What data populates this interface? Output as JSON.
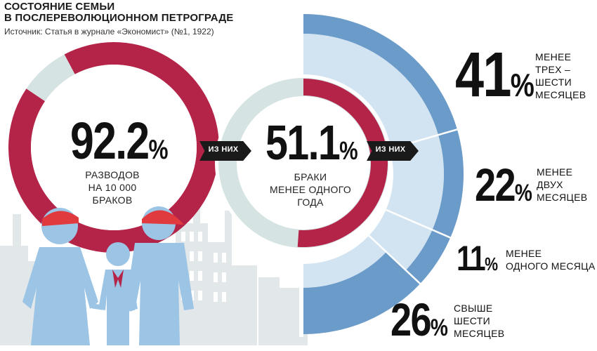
{
  "header": {
    "title_line1": "СОСТОЯНИЕ СЕМЬИ",
    "title_line2": "В ПОСЛЕРЕВОЛЮЦИОННОМ ПЕТРОГРАДЕ",
    "source": "Источник: Статья в журнале «Экономист» (№1, 1922)"
  },
  "colors": {
    "crimson": "#b42448",
    "ring_gray": "#d6e3e3",
    "blue": "#6b9bc9",
    "blue_light": "#d2e4f1",
    "figure_blue": "#9bc4e5",
    "skyline": "#e2e8ea",
    "cap_red": "#e03a3e"
  },
  "connectors": {
    "left": "ИЗ НИХ",
    "right": "ИЗ НИХ"
  },
  "chart_data": [
    {
      "type": "pie",
      "style": "donut",
      "categories": [
        "разводы",
        "остальное"
      ],
      "values": [
        92.2,
        7.8
      ],
      "value_label": "92.2",
      "pct_sign": "%",
      "caption_lines": [
        "РАЗВОДОВ",
        "НА 10 000",
        "БРАКОВ"
      ]
    },
    {
      "type": "pie",
      "style": "donut",
      "categories": [
        "браки менее одного года",
        "остальное"
      ],
      "values": [
        51.1,
        48.9
      ],
      "value_label": "51.1",
      "pct_sign": "%",
      "caption_lines": [
        "БРАКИ",
        "МЕНЕЕ ОДНОГО",
        "ГОДА"
      ]
    },
    {
      "type": "pie",
      "style": "half-ring",
      "categories": [
        "МЕНЕЕ ТРЕХ – ШЕСТИ МЕСЯЦЕВ",
        "МЕНЕЕ ДВУХ МЕСЯЦЕВ",
        "МЕНЕЕ ОДНОГО МЕСЯЦА",
        "СВЫШЕ ШЕСТИ МЕСЯЦЕВ"
      ],
      "values": [
        41,
        22,
        11,
        26
      ],
      "labels": [
        {
          "value": "41",
          "lines": [
            "МЕНЕЕ",
            "ТРЕХ –",
            "ШЕСТИ",
            "МЕСЯЦЕВ"
          ]
        },
        {
          "value": "22",
          "lines": [
            "МЕНЕЕ",
            "ДВУХ",
            "МЕСЯЦЕВ"
          ]
        },
        {
          "value": "11",
          "lines": [
            "МЕНЕЕ",
            "ОДНОГО МЕСЯЦА"
          ]
        },
        {
          "value": "26",
          "lines": [
            "СВЫШЕ",
            "ШЕСТИ",
            "МЕСЯЦЕВ"
          ]
        }
      ],
      "pct_sign": "%"
    }
  ]
}
